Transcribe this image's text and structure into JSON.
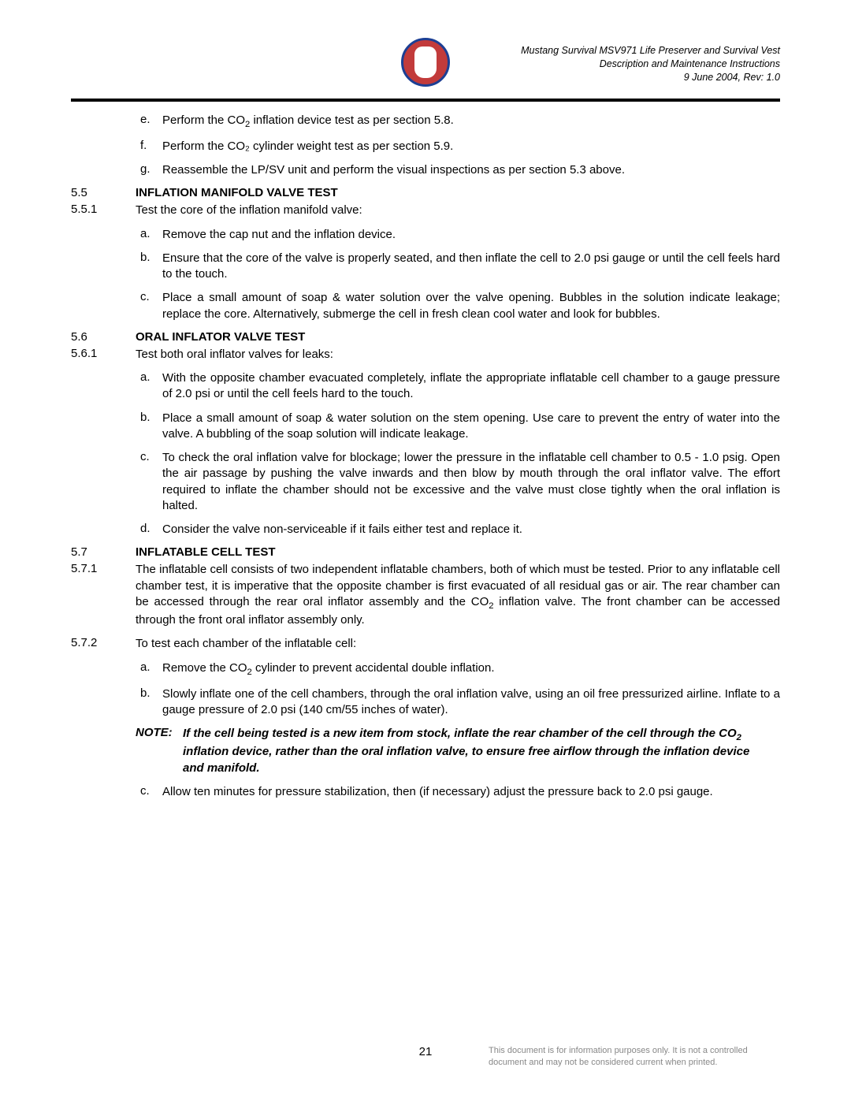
{
  "header": {
    "line1": "Mustang Survival MSV971 Life Preserver and Survival Vest",
    "line2": "Description and Maintenance Instructions",
    "line3": "9 June 2004, Rev: 1.0"
  },
  "top_list": {
    "e": "Perform the CO₂ inflation device test as per section 5.8.",
    "f": "Perform the CO₂ cylinder weight test as per section 5.9.",
    "g": "Reassemble the LP/SV unit and perform the visual inspections as per section 5.3 above."
  },
  "s55": {
    "num": "5.5",
    "title": "INFLATION MANIFOLD VALVE TEST",
    "p1_num": "5.5.1",
    "p1": "Test the core of the inflation manifold valve:",
    "a": "Remove the cap nut and the inflation device.",
    "b": "Ensure that the core of the valve is properly seated, and then inflate the cell to 2.0 psi gauge or until the cell feels hard to the touch.",
    "c": "Place a small amount of soap & water solution over the valve opening.  Bubbles in the solution indicate leakage; replace the core. Alternatively, submerge the cell in fresh clean cool water and look for bubbles."
  },
  "s56": {
    "num": "5.6",
    "title": "ORAL INFLATOR VALVE TEST",
    "p1_num": "5.6.1",
    "p1": "Test both oral inflator valves for leaks:",
    "a": "With the opposite chamber evacuated completely, inflate the appropriate inflatable cell chamber to a gauge pressure of 2.0 psi or until the cell feels hard to the touch.",
    "b": "Place a small amount of soap & water solution on the stem opening. Use care to prevent the entry of water into the valve. A bubbling of the soap solution will indicate leakage.",
    "c": "To check the oral inflation valve for blockage; lower the pressure in the inflatable cell chamber to 0.5 - 1.0 psig. Open the air passage by pushing the valve inwards and then blow by mouth through the oral inflator valve. The effort required to inflate the chamber should not be excessive and the valve must close tightly when the oral inflation is halted.",
    "d": "Consider the valve non-serviceable if it fails either test and replace it."
  },
  "s57": {
    "num": "5.7",
    "title": "INFLATABLE CELL TEST",
    "p1_num": "5.7.1",
    "p1": "The inflatable cell consists of two independent inflatable chambers, both of which must be tested. Prior to any inflatable cell chamber test, it is imperative that the opposite chamber is first evacuated of all residual gas or air. The rear chamber can be accessed through the rear oral inflator assembly and the CO₂ inflation valve. The front chamber can be accessed through the front oral inflator assembly only.",
    "p2_num": "5.7.2",
    "p2": "To test each chamber of the inflatable cell:",
    "a": "Remove the CO₂ cylinder to prevent accidental double inflation.",
    "b": "Slowly inflate one of the cell chambers, through the oral inflation valve, using an oil free pressurized airline. Inflate to a gauge pressure of 2.0 psi (140 cm/55 inches of water).",
    "note_label": "NOTE:",
    "note": "If the cell being tested is a new item from stock, inflate the rear chamber of the cell through the CO₂ inflation device, rather than the oral inflation valve, to ensure free airflow through the inflation device and manifold.",
    "c": "Allow ten minutes for pressure stabilization, then (if necessary) adjust the pressure back to 2.0 psi gauge."
  },
  "footer": {
    "page": "21",
    "disclaimer": "This document is for information purposes only. It is not a controlled document and may not be considered current when printed."
  }
}
